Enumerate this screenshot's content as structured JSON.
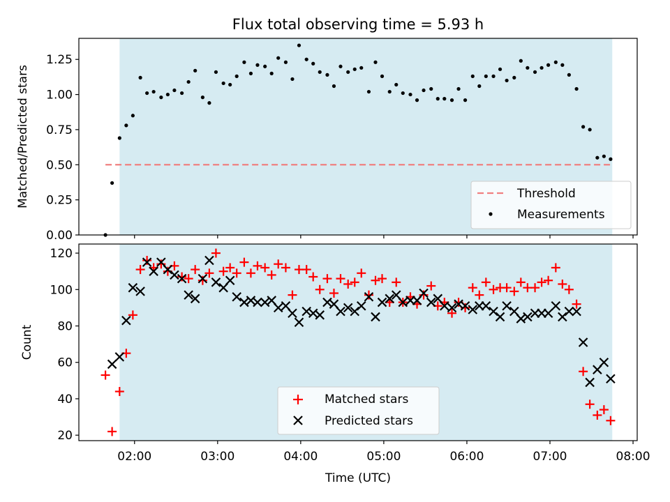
{
  "chart_data": [
    {
      "type": "scatter",
      "title": "Flux total observing time = 5.93 h",
      "xlabel": "",
      "ylabel": "Matched/Predicted stars",
      "xlim": [
        1.33,
        8.05
      ],
      "ylim": [
        0,
        1.4
      ],
      "yticks": [
        "0.00",
        "0.25",
        "0.50",
        "0.75",
        "1.00",
        "1.25"
      ],
      "shaded_span": [
        1.82,
        7.75
      ],
      "span_color": "#add8e6",
      "threshold": {
        "name": "Threshold",
        "value": 0.5,
        "x": [
          1.65,
          7.75
        ],
        "color": "#f08080"
      },
      "legend_position": "lower right",
      "series": [
        {
          "name": "Measurements",
          "color": "#000000",
          "marker": "dot",
          "x": [
            1.65,
            1.73,
            1.82,
            1.9,
            1.98,
            2.07,
            2.15,
            2.23,
            2.32,
            2.4,
            2.48,
            2.57,
            2.65,
            2.73,
            2.82,
            2.9,
            2.98,
            3.07,
            3.15,
            3.23,
            3.32,
            3.4,
            3.48,
            3.57,
            3.65,
            3.73,
            3.82,
            3.9,
            3.98,
            4.07,
            4.15,
            4.23,
            4.32,
            4.4,
            4.48,
            4.57,
            4.65,
            4.73,
            4.82,
            4.9,
            4.98,
            5.07,
            5.15,
            5.23,
            5.32,
            5.4,
            5.48,
            5.57,
            5.65,
            5.73,
            5.82,
            5.9,
            5.98,
            6.07,
            6.15,
            6.23,
            6.32,
            6.4,
            6.48,
            6.57,
            6.65,
            6.73,
            6.82,
            6.9,
            6.98,
            7.07,
            7.15,
            7.23,
            7.32,
            7.4,
            7.48,
            7.57,
            7.65,
            7.73
          ],
          "y": [
            0.0,
            0.37,
            0.69,
            0.78,
            0.85,
            1.12,
            1.01,
            1.02,
            0.98,
            1.0,
            1.03,
            1.01,
            1.09,
            1.17,
            0.98,
            0.94,
            1.16,
            1.08,
            1.07,
            1.13,
            1.23,
            1.15,
            1.21,
            1.2,
            1.15,
            1.26,
            1.23,
            1.11,
            1.35,
            1.25,
            1.22,
            1.16,
            1.14,
            1.06,
            1.2,
            1.16,
            1.18,
            1.19,
            1.02,
            1.23,
            1.13,
            1.02,
            1.07,
            1.01,
            1.0,
            0.96,
            1.03,
            1.04,
            0.97,
            0.97,
            0.96,
            1.04,
            0.96,
            1.13,
            1.06,
            1.13,
            1.13,
            1.18,
            1.1,
            1.12,
            1.24,
            1.19,
            1.16,
            1.19,
            1.21,
            1.23,
            1.21,
            1.14,
            1.04,
            0.77,
            0.75,
            0.55,
            0.56,
            0.54
          ]
        }
      ]
    },
    {
      "type": "scatter",
      "title": "",
      "xlabel": "Time (UTC)",
      "ylabel": "Count",
      "xlim": [
        1.33,
        8.05
      ],
      "ylim": [
        17,
        125
      ],
      "yticks": [
        "20",
        "40",
        "60",
        "80",
        "100",
        "120"
      ],
      "xticks": [
        "02:00",
        "03:00",
        "04:00",
        "05:00",
        "06:00",
        "07:00",
        "08:00"
      ],
      "shaded_span": [
        1.82,
        7.75
      ],
      "span_color": "#add8e6",
      "legend_position": "lower center",
      "series": [
        {
          "name": "Matched stars",
          "color": "#ff0000",
          "marker": "plus",
          "x": [
            1.65,
            1.73,
            1.82,
            1.9,
            1.98,
            2.07,
            2.15,
            2.23,
            2.32,
            2.4,
            2.48,
            2.57,
            2.65,
            2.73,
            2.82,
            2.9,
            2.98,
            3.07,
            3.15,
            3.23,
            3.32,
            3.4,
            3.48,
            3.57,
            3.65,
            3.73,
            3.82,
            3.9,
            3.98,
            4.07,
            4.15,
            4.23,
            4.32,
            4.4,
            4.48,
            4.57,
            4.65,
            4.73,
            4.82,
            4.9,
            4.98,
            5.07,
            5.15,
            5.23,
            5.32,
            5.4,
            5.48,
            5.57,
            5.65,
            5.73,
            5.82,
            5.9,
            5.98,
            6.07,
            6.15,
            6.23,
            6.32,
            6.4,
            6.48,
            6.57,
            6.65,
            6.73,
            6.82,
            6.9,
            6.98,
            7.07,
            7.15,
            7.23,
            7.32,
            7.4,
            7.48,
            7.57,
            7.65,
            7.73
          ],
          "y": [
            53,
            22,
            44,
            65,
            86,
            111,
            116,
            112,
            114,
            110,
            113,
            107,
            106,
            111,
            105,
            109,
            120,
            110,
            112,
            109,
            115,
            109,
            113,
            112,
            108,
            114,
            112,
            97,
            111,
            111,
            107,
            100,
            106,
            98,
            106,
            103,
            104,
            109,
            97,
            105,
            106,
            93,
            104,
            93,
            96,
            92,
            97,
            102,
            91,
            93,
            87,
            93,
            90,
            101,
            97,
            104,
            100,
            101,
            101,
            99,
            104,
            101,
            101,
            104,
            105,
            112,
            103,
            100,
            92,
            55,
            37,
            31,
            34,
            28
          ]
        },
        {
          "name": "Predicted stars",
          "color": "#000000",
          "marker": "x",
          "x": [
            1.73,
            1.82,
            1.9,
            1.98,
            2.07,
            2.15,
            2.23,
            2.32,
            2.4,
            2.48,
            2.57,
            2.65,
            2.73,
            2.82,
            2.9,
            2.98,
            3.07,
            3.15,
            3.23,
            3.32,
            3.4,
            3.48,
            3.57,
            3.65,
            3.73,
            3.82,
            3.9,
            3.98,
            4.07,
            4.15,
            4.23,
            4.32,
            4.4,
            4.48,
            4.57,
            4.65,
            4.73,
            4.82,
            4.9,
            4.98,
            5.07,
            5.15,
            5.23,
            5.32,
            5.4,
            5.48,
            5.57,
            5.65,
            5.73,
            5.82,
            5.9,
            5.98,
            6.07,
            6.15,
            6.23,
            6.32,
            6.4,
            6.48,
            6.57,
            6.65,
            6.73,
            6.82,
            6.9,
            6.98,
            7.07,
            7.15,
            7.23,
            7.32,
            7.4,
            7.48,
            7.57,
            7.65,
            7.73
          ],
          "y": [
            59,
            63,
            83,
            101,
            99,
            115,
            110,
            115,
            111,
            108,
            106,
            97,
            95,
            106,
            116,
            104,
            101,
            105,
            96,
            93,
            94,
            93,
            93,
            94,
            90,
            91,
            87,
            82,
            88,
            87,
            86,
            93,
            92,
            88,
            90,
            88,
            91,
            96,
            85,
            93,
            95,
            97,
            93,
            94,
            94,
            98,
            93,
            95,
            91,
            90,
            92,
            91,
            89,
            91,
            91,
            88,
            85,
            91,
            88,
            84,
            85,
            87,
            87,
            87,
            91,
            85,
            88,
            88,
            71,
            49,
            56,
            60,
            51
          ]
        }
      ]
    }
  ]
}
